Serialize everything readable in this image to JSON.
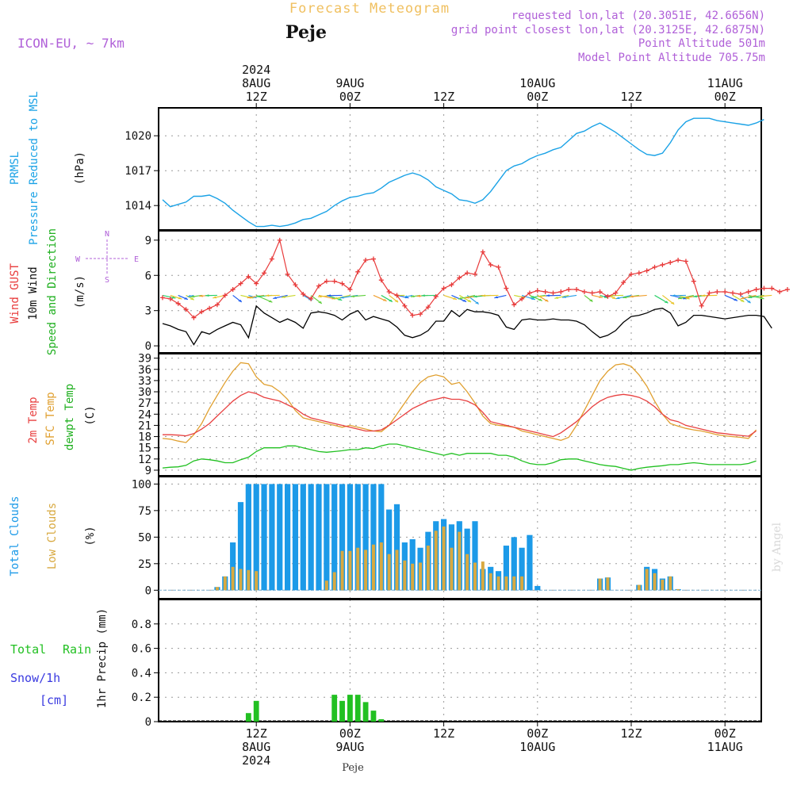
{
  "header": {
    "meteogram_title": "Forecast Meteogram",
    "location": "Peje",
    "model": "ICON-EU, ~ 7km",
    "requested": "requested lon,lat (20.3051E, 42.6656N)",
    "grid_point": "grid point closest lon,lat (20.3125E, 42.6875N)",
    "point_altitude": "Point Altitude 501m",
    "model_altitude": "Model Point Altitude 705.75m",
    "footer_location": "Peje",
    "watermark": "by Angel"
  },
  "colors": {
    "pressure": "#1aa2e6",
    "gust": "#e83a3a",
    "wind": "#000000",
    "temp2m": "#e84040",
    "sfc": "#e0a030",
    "dewpt": "#20c020",
    "total_cloud": "#1c9ae8",
    "low_cloud": "#d8a940",
    "rain": "#22c022",
    "snow": "#3a3ae0",
    "purple": "#b060d8",
    "title_orange": "#f0c060"
  },
  "time_axis": {
    "top": [
      {
        "i": 12,
        "lines": [
          "2024",
          "8AUG",
          "12Z"
        ]
      },
      {
        "i": 24,
        "lines": [
          "9AUG",
          "00Z"
        ]
      },
      {
        "i": 36,
        "lines": [
          "12Z"
        ]
      },
      {
        "i": 48,
        "lines": [
          "10AUG",
          "00Z"
        ]
      },
      {
        "i": 60,
        "lines": [
          "12Z"
        ]
      },
      {
        "i": 72,
        "lines": [
          "11AUG",
          "00Z"
        ]
      }
    ],
    "bottom": [
      {
        "i": 12,
        "lines": [
          "12Z",
          "8AUG",
          "2024"
        ]
      },
      {
        "i": 24,
        "lines": [
          "00Z",
          "9AUG"
        ]
      },
      {
        "i": 36,
        "lines": [
          "12Z"
        ]
      },
      {
        "i": 48,
        "lines": [
          "00Z",
          "10AUG"
        ]
      },
      {
        "i": 60,
        "lines": [
          "12Z"
        ]
      },
      {
        "i": 72,
        "lines": [
          "00Z",
          "11AUG"
        ]
      }
    ]
  },
  "panel_labels": {
    "pressure": {
      "line1": "PRMSL",
      "line2": "Pressure Reduced to MSL",
      "unit": "(hPa)"
    },
    "wind": {
      "gust": "Wind GUST",
      "wind10": "10m Wind",
      "speed": "Speed and Direction",
      "unit": "(m/s)",
      "compass_n": "N",
      "compass_s": "S",
      "compass_w": "W",
      "compass_e": "E"
    },
    "temp": {
      "t2m": "2m Temp",
      "sfc": "SFC Temp",
      "dewpt": "dewpt Temp",
      "unit": "(C)"
    },
    "cloud": {
      "total": "Total Clouds",
      "low": "Low Clouds",
      "unit": "(%)"
    },
    "precip": {
      "total": "Total",
      "rain": "Rain",
      "snow": "Snow/1h",
      "cm": "[cm]",
      "axis": "1hr Precip (mm)"
    }
  },
  "chart_data": [
    {
      "type": "line",
      "panel": "pressure",
      "ylabel": "Pressure Reduced to MSL (hPa)",
      "ylim": [
        1011.9,
        1022.4
      ],
      "yticks": [
        1014,
        1017,
        1020
      ],
      "x_start_index": 0,
      "series": [
        {
          "name": "PRMSL",
          "values": [
            1014.5,
            1013.9,
            1014.1,
            1014.3,
            1014.8,
            1014.8,
            1014.9,
            1014.6,
            1014.2,
            1013.6,
            1013.1,
            1012.6,
            1012.2,
            1012.2,
            1012.3,
            1012.2,
            1012.3,
            1012.5,
            1012.8,
            1012.9,
            1013.2,
            1013.5,
            1014.0,
            1014.4,
            1014.7,
            1014.8,
            1015.0,
            1015.1,
            1015.5,
            1016.0,
            1016.3,
            1016.6,
            1016.8,
            1016.6,
            1016.2,
            1015.6,
            1015.3,
            1015.0,
            1014.5,
            1014.4,
            1014.2,
            1014.5,
            1015.2,
            1016.1,
            1017.0,
            1017.4,
            1017.6,
            1018.0,
            1018.3,
            1018.5,
            1018.8,
            1019.0,
            1019.6,
            1020.2,
            1020.4,
            1020.8,
            1021.1,
            1020.7,
            1020.3,
            1019.8,
            1019.3,
            1018.8,
            1018.4,
            1018.3,
            1018.5,
            1019.4,
            1020.5,
            1021.2,
            1021.5,
            1021.5,
            1021.5,
            1021.3,
            1021.2,
            1021.1,
            1021.0,
            1020.9,
            1021.1,
            1021.4
          ]
        }
      ]
    },
    {
      "type": "line",
      "panel": "wind",
      "ylabel": "(m/s)",
      "ylim": [
        -0.6,
        9.8
      ],
      "yticks": [
        0,
        3,
        6,
        9
      ],
      "x_start_index": 0,
      "series": [
        {
          "name": "Wind GUST",
          "values": [
            4.1,
            4.0,
            3.6,
            3.1,
            2.4,
            2.9,
            3.2,
            3.5,
            4.3,
            4.8,
            5.3,
            5.9,
            5.3,
            6.2,
            7.4,
            9.0,
            6.1,
            5.2,
            4.4,
            4.0,
            5.1,
            5.5,
            5.5,
            5.3,
            4.8,
            6.3,
            7.3,
            7.4,
            5.6,
            4.6,
            4.3,
            3.4,
            2.6,
            2.7,
            3.3,
            4.2,
            4.9,
            5.2,
            5.8,
            6.2,
            6.1,
            8.0,
            6.9,
            6.7,
            4.9,
            3.5,
            4.0,
            4.5,
            4.7,
            4.6,
            4.5,
            4.6,
            4.8,
            4.8,
            4.6,
            4.5,
            4.6,
            4.2,
            4.5,
            5.4,
            6.1,
            6.2,
            6.4,
            6.7,
            6.9,
            7.1,
            7.3,
            7.2,
            5.5,
            3.4,
            4.5,
            4.6,
            4.6,
            4.5,
            4.4,
            4.6,
            4.8,
            4.9,
            4.9,
            4.6,
            4.8
          ]
        },
        {
          "name": "10m Wind",
          "values": [
            1.9,
            1.7,
            1.4,
            1.2,
            0.1,
            1.2,
            1.0,
            1.4,
            1.7,
            2.0,
            1.8,
            0.7,
            3.4,
            2.8,
            2.4,
            2.0,
            2.3,
            2.0,
            1.5,
            2.8,
            2.9,
            2.8,
            2.6,
            2.2,
            2.7,
            3.0,
            2.2,
            2.5,
            2.3,
            2.1,
            1.6,
            0.9,
            0.7,
            0.9,
            1.3,
            2.1,
            2.1,
            3.0,
            2.5,
            3.1,
            2.9,
            2.9,
            2.8,
            2.6,
            1.6,
            1.4,
            2.2,
            2.3,
            2.2,
            2.2,
            2.3,
            2.2,
            2.2,
            2.1,
            1.8,
            1.2,
            0.7,
            0.9,
            1.3,
            2.0,
            2.5,
            2.6,
            2.8,
            3.1,
            3.2,
            2.8,
            1.7,
            2.0,
            2.6,
            2.6,
            2.5,
            2.4,
            2.3,
            2.4,
            2.5,
            2.6,
            2.6,
            2.5,
            1.5
          ]
        }
      ]
    },
    {
      "type": "line",
      "panel": "temp",
      "ylabel": "(C)",
      "ylim": [
        7.5,
        40.2
      ],
      "yticks": [
        9,
        12,
        15,
        18,
        21,
        24,
        27,
        30,
        33,
        36,
        39
      ],
      "x_start_index": 0,
      "series": [
        {
          "name": "2m Temp",
          "values": [
            18.5,
            18.5,
            18.4,
            18.2,
            18.8,
            20.0,
            21.5,
            23.5,
            25.5,
            27.5,
            29.0,
            30.0,
            29.5,
            28.5,
            28.0,
            27.5,
            26.5,
            25.5,
            24.0,
            23.0,
            22.5,
            22.0,
            21.5,
            21.0,
            20.5,
            20.0,
            19.5,
            19.5,
            19.8,
            21.0,
            22.5,
            24.0,
            25.5,
            26.5,
            27.5,
            28.0,
            28.5,
            28.0,
            28.0,
            27.5,
            26.5,
            24.5,
            22.0,
            21.5,
            21.0,
            20.5,
            20.0,
            19.5,
            19.0,
            18.5,
            18.0,
            19.0,
            20.5,
            22.0,
            24.0,
            26.0,
            27.5,
            28.5,
            29.0,
            29.3,
            29.0,
            28.5,
            27.5,
            26.0,
            24.0,
            22.5,
            22.0,
            21.0,
            20.5,
            20.0,
            19.5,
            19.0,
            18.8,
            18.5,
            18.3,
            18.1,
            19.5
          ]
        },
        {
          "name": "SFC Temp",
          "values": [
            17.5,
            17.3,
            16.8,
            16.4,
            18.5,
            21.5,
            25.5,
            29.0,
            32.5,
            35.5,
            37.8,
            37.5,
            34.0,
            32.0,
            31.5,
            30.0,
            28.0,
            25.0,
            23.0,
            22.5,
            22.0,
            21.5,
            21.0,
            20.5,
            21.0,
            20.5,
            20.0,
            19.5,
            19.3,
            21.0,
            24.0,
            27.0,
            30.0,
            32.5,
            34.0,
            34.5,
            34.0,
            32.0,
            32.5,
            30.0,
            27.0,
            23.5,
            21.5,
            21.0,
            20.8,
            20.5,
            19.5,
            19.0,
            18.5,
            18.0,
            17.5,
            17.0,
            17.8,
            21.0,
            25.0,
            29.0,
            33.0,
            35.5,
            37.2,
            37.5,
            36.8,
            34.5,
            31.5,
            27.5,
            24.0,
            21.5,
            20.8,
            20.2,
            19.8,
            19.5,
            19.0,
            18.5,
            18.2,
            18.0,
            17.8,
            17.5,
            19.8
          ]
        },
        {
          "name": "dewpt Temp",
          "values": [
            9.6,
            9.8,
            9.9,
            10.3,
            11.5,
            12.0,
            11.8,
            11.5,
            11.0,
            11.0,
            11.8,
            12.5,
            14.0,
            15.0,
            15.0,
            15.0,
            15.5,
            15.5,
            15.0,
            14.5,
            14.0,
            13.8,
            14.0,
            14.2,
            14.5,
            14.5,
            15.0,
            14.8,
            15.5,
            16.0,
            16.0,
            15.5,
            15.0,
            14.5,
            14.0,
            13.5,
            13.0,
            13.5,
            13.0,
            13.5,
            13.5,
            13.5,
            13.5,
            13.0,
            13.0,
            12.5,
            11.5,
            10.8,
            10.5,
            10.5,
            11.0,
            11.8,
            12.0,
            12.0,
            11.5,
            11.0,
            10.5,
            10.2,
            10.0,
            9.5,
            9.0,
            9.5,
            9.8,
            10.0,
            10.2,
            10.5,
            10.5,
            10.8,
            11.0,
            10.8,
            10.5,
            10.5,
            10.5,
            10.5,
            10.5,
            10.8,
            11.5
          ]
        }
      ]
    },
    {
      "type": "bar",
      "panel": "cloud",
      "ylabel": "(%)",
      "ylim": [
        -8,
        107
      ],
      "yticks": [
        0,
        25,
        50,
        75,
        100
      ],
      "x_start_index": 0,
      "series": [
        {
          "name": "Total Clouds",
          "values": [
            0,
            0,
            0,
            0,
            0,
            0,
            0,
            3,
            13,
            45,
            83,
            100,
            100,
            100,
            100,
            100,
            100,
            100,
            100,
            100,
            100,
            100,
            100,
            100,
            100,
            100,
            100,
            100,
            100,
            76,
            81,
            45,
            48,
            40,
            55,
            65,
            67,
            62,
            65,
            58,
            65,
            20,
            22,
            18,
            42,
            50,
            40,
            52,
            4,
            0,
            0,
            0,
            0,
            0,
            0,
            0,
            11,
            12,
            0,
            0,
            0,
            5,
            22,
            20,
            11,
            13,
            1,
            0,
            0,
            0,
            0,
            0,
            0,
            0,
            0,
            0,
            0,
            0,
            0
          ]
        },
        {
          "name": "Low Clouds",
          "values": [
            0,
            0,
            0,
            0,
            0,
            0,
            0,
            3,
            13,
            22,
            20,
            19,
            18,
            0,
            0,
            0,
            0,
            0,
            0,
            0,
            0,
            9,
            17,
            37,
            37,
            40,
            38,
            43,
            45,
            34,
            38,
            28,
            25,
            26,
            42,
            56,
            60,
            40,
            55,
            34,
            26,
            27,
            16,
            13,
            13,
            13,
            13,
            0,
            0,
            0,
            0,
            0,
            0,
            0,
            0,
            0,
            11,
            12,
            0,
            0,
            0,
            5,
            20,
            16,
            10,
            13,
            1,
            0,
            0,
            0,
            0,
            0,
            0,
            0,
            0,
            0,
            0,
            0,
            0
          ]
        }
      ]
    },
    {
      "type": "bar",
      "panel": "precip",
      "ylabel": "1hr Precip (mm)",
      "ylim": [
        0,
        1.0
      ],
      "yticks": [
        0,
        0.2,
        0.4,
        0.6,
        0.8
      ],
      "x_start_index": 0,
      "series": [
        {
          "name": "Total Rain",
          "values": [
            0,
            0,
            0,
            0,
            0,
            0,
            0,
            0,
            0,
            0,
            0,
            0.07,
            0.17,
            0,
            0,
            0,
            0,
            0,
            0,
            0,
            0,
            0,
            0.22,
            0.17,
            0.22,
            0.22,
            0.16,
            0.09,
            0.02,
            0,
            0,
            0,
            0,
            0,
            0,
            0,
            0,
            0,
            0,
            0,
            0,
            0,
            0,
            0,
            0,
            0,
            0,
            0,
            0,
            0,
            0,
            0,
            0,
            0,
            0,
            0,
            0,
            0,
            0,
            0,
            0,
            0,
            0,
            0,
            0,
            0,
            0,
            0,
            0,
            0,
            0,
            0,
            0,
            0,
            0,
            0,
            0,
            0
          ]
        }
      ]
    }
  ]
}
